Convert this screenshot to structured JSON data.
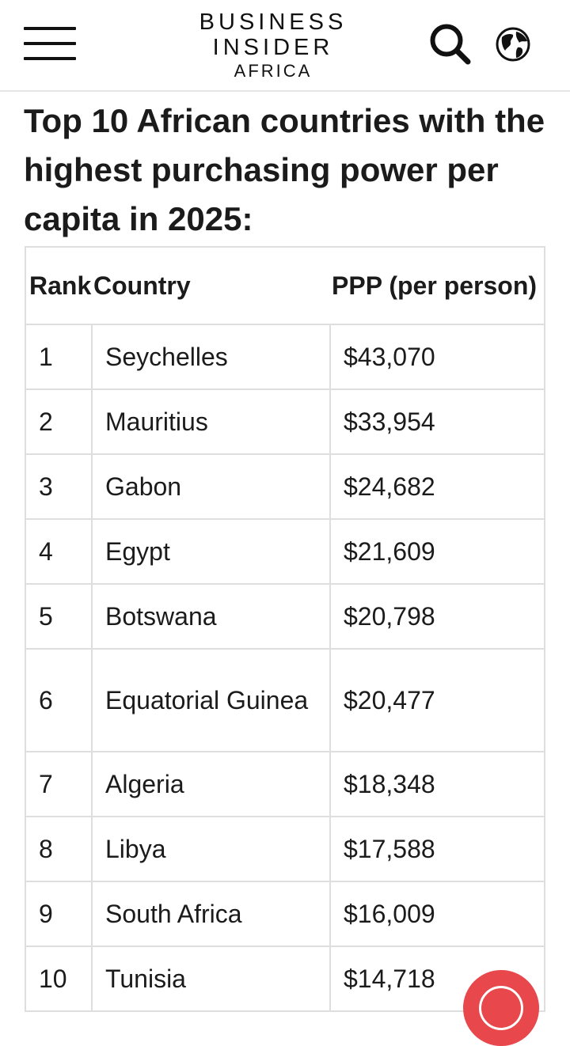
{
  "header": {
    "logo_line1": "BUSINESS",
    "logo_line2": "INSIDER",
    "logo_line3": "AFRICA"
  },
  "article": {
    "headline": "Top 10 African countries with the highest purchasing power per capita in 2025:"
  },
  "table": {
    "headers": [
      "Rank",
      "Country",
      "PPP (per person)"
    ],
    "rows": [
      {
        "rank": "1",
        "country": "Seychelles",
        "ppp": "$43,070"
      },
      {
        "rank": "2",
        "country": "Mauritius",
        "ppp": "$33,954"
      },
      {
        "rank": "3",
        "country": "Gabon",
        "ppp": "$24,682"
      },
      {
        "rank": "4",
        "country": "Egypt",
        "ppp": "$21,609"
      },
      {
        "rank": "5",
        "country": "Botswana",
        "ppp": "$20,798"
      },
      {
        "rank": "6",
        "country": "Equatorial Guinea",
        "ppp": "$20,477"
      },
      {
        "rank": "7",
        "country": "Algeria",
        "ppp": "$18,348"
      },
      {
        "rank": "8",
        "country": "Libya",
        "ppp": "$17,588"
      },
      {
        "rank": "9",
        "country": "South Africa",
        "ppp": "$16,009"
      },
      {
        "rank": "10",
        "country": "Tunisia",
        "ppp": "$14,718"
      }
    ]
  },
  "icons": {
    "menu": "hamburger-menu-icon",
    "search": "search-icon",
    "region": "globe-icon",
    "floating_button": "red-round-button"
  },
  "colors": {
    "text": "#1b1b1b",
    "border": "#dedede",
    "accent": "#e8474c"
  }
}
